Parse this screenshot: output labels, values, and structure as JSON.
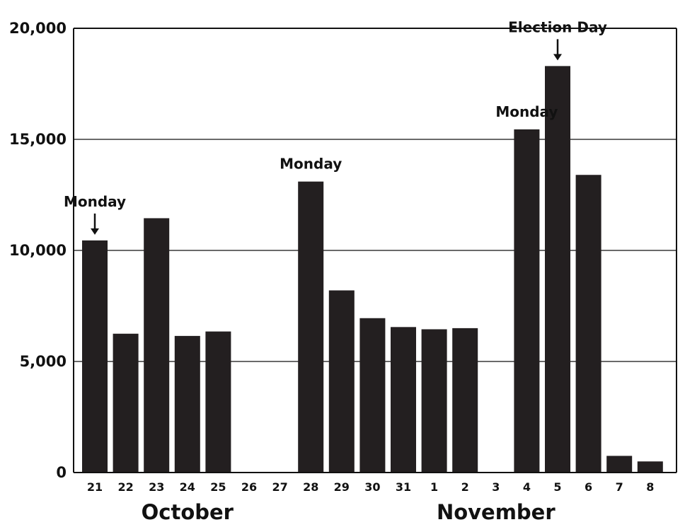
{
  "chart_data": {
    "type": "bar",
    "categories": [
      "21",
      "22",
      "23",
      "24",
      "25",
      "26",
      "27",
      "28",
      "29",
      "30",
      "31",
      "1",
      "2",
      "3",
      "4",
      "5",
      "6",
      "7",
      "8"
    ],
    "values": [
      10450,
      6250,
      11450,
      6150,
      6350,
      0,
      0,
      13100,
      8200,
      6950,
      6550,
      6450,
      6500,
      0,
      15450,
      18300,
      13400,
      750,
      500
    ],
    "ylim": [
      0,
      20000
    ],
    "yticks": [
      0,
      5000,
      10000,
      15000,
      20000
    ],
    "ytick_labels": [
      "0",
      "5,000",
      "10,000",
      "15,000",
      "20,000"
    ],
    "grid": true,
    "bar_color": "#231f20",
    "month_labels": [
      {
        "text": "October",
        "under": "24"
      },
      {
        "text": "November",
        "under": "3"
      }
    ],
    "annotations": [
      {
        "text": "Monday",
        "category": "21",
        "arrow": true
      },
      {
        "text": "Monday",
        "category": "28",
        "arrow": false
      },
      {
        "text": "Monday",
        "category": "4",
        "arrow": false
      },
      {
        "text": "Election Day",
        "category": "5",
        "arrow": true
      }
    ]
  }
}
